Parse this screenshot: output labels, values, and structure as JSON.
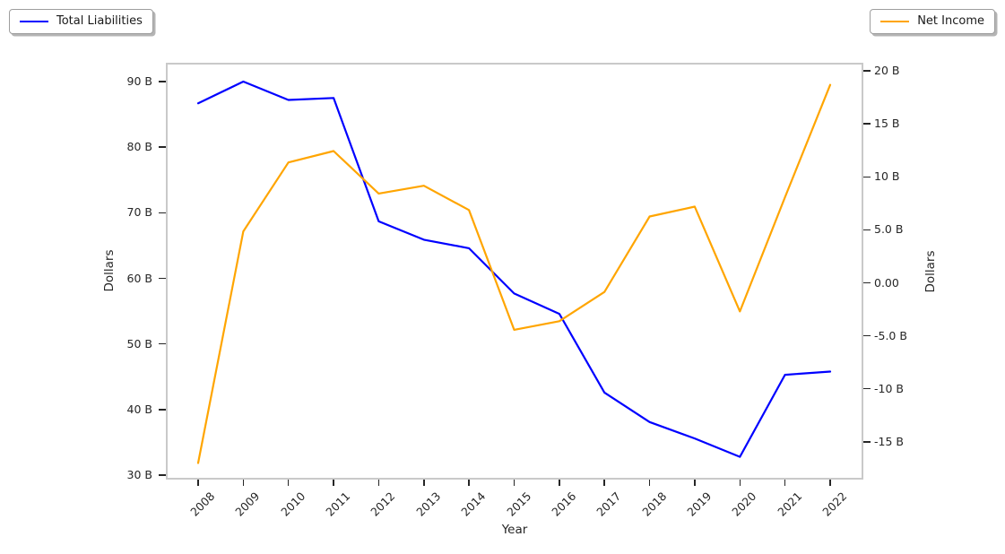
{
  "figure": {
    "background": "#ffffff",
    "spine_color": "#c9c9c9",
    "text_color": "#262626"
  },
  "chart_data": {
    "type": "line",
    "title": "",
    "xlabel": "Year",
    "x": [
      "2008",
      "2009",
      "2010",
      "2011",
      "2012",
      "2013",
      "2014",
      "2015",
      "2016",
      "2017",
      "2018",
      "2019",
      "2020",
      "2021",
      "2022"
    ],
    "series": [
      {
        "name": "Total Liabilities",
        "yaxis": "left",
        "color": "#0000FF",
        "legend_position": "top-left-outside",
        "values": [
          86.7,
          90.0,
          87.2,
          87.5,
          68.7,
          65.9,
          64.6,
          57.7,
          54.6,
          42.6,
          38.1,
          35.6,
          32.8,
          45.3,
          45.8
        ]
      },
      {
        "name": "Net Income",
        "yaxis": "right",
        "color": "#FFA500",
        "legend_position": "top-right-outside",
        "values": [
          -17.0,
          4.86,
          11.36,
          12.44,
          8.43,
          9.16,
          6.87,
          -4.43,
          -3.62,
          -0.86,
          6.26,
          7.19,
          -2.7,
          8.08,
          18.68
        ]
      }
    ],
    "left_axis": {
      "label": "Dollars",
      "unit": "billions",
      "ylim": [
        29.6,
        92.6
      ],
      "ticks": [
        {
          "v": 90,
          "t": "90 B"
        },
        {
          "v": 80,
          "t": "80 B"
        },
        {
          "v": 70,
          "t": "70 B"
        },
        {
          "v": 60,
          "t": "60 B"
        },
        {
          "v": 50,
          "t": "50 B"
        },
        {
          "v": 40,
          "t": "40 B"
        },
        {
          "v": 30,
          "t": "30 B"
        }
      ]
    },
    "right_axis": {
      "label": "Dollars",
      "unit": "billions",
      "ylim": [
        -18.4,
        20.6
      ],
      "ticks": [
        {
          "v": 20,
          "t": "20 B"
        },
        {
          "v": 15,
          "t": "15 B"
        },
        {
          "v": 10,
          "t": "10 B"
        },
        {
          "v": 5,
          "t": "5.0 B"
        },
        {
          "v": 0,
          "t": "0.00"
        },
        {
          "v": -5,
          "t": "-5.0 B"
        },
        {
          "v": -10,
          "t": "-10 B"
        },
        {
          "v": -15,
          "t": "-15 B"
        }
      ]
    },
    "grid": false
  }
}
